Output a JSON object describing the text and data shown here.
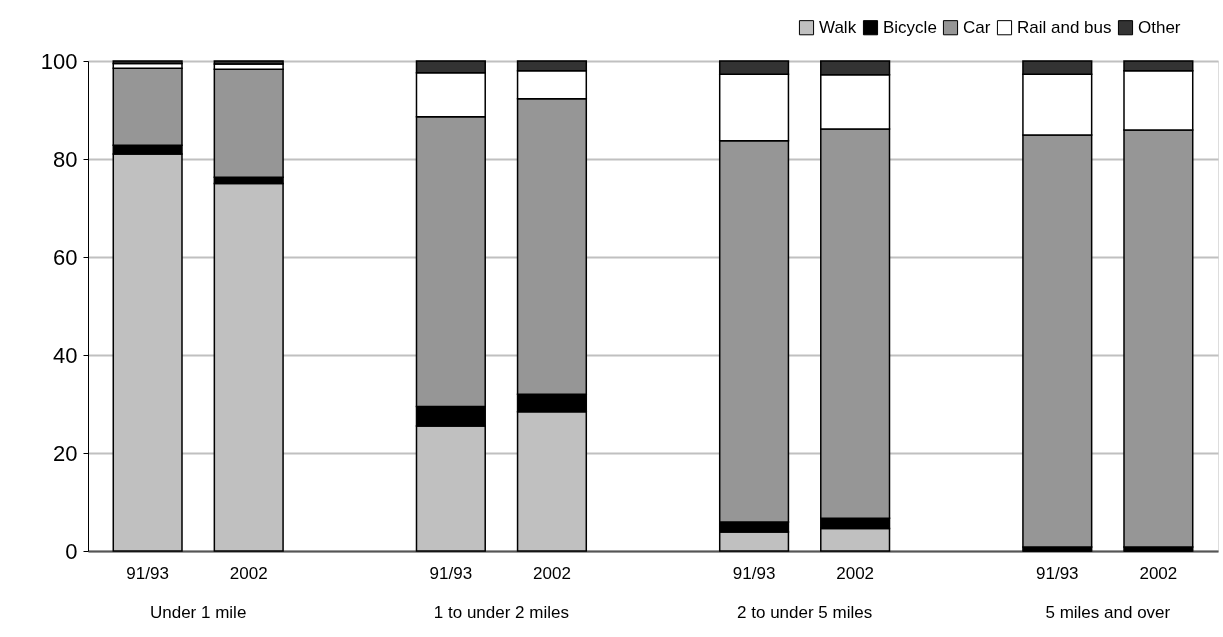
{
  "chart_data": {
    "type": "bar",
    "stacked": true,
    "categories": [
      "91/93",
      "2002",
      null,
      "91/93",
      "2002",
      null,
      "91/93",
      "2002",
      null,
      "91/93",
      "2002"
    ],
    "series": [
      {
        "name": "Walk",
        "color": "#c0c0c0",
        "values": [
          81,
          75,
          null,
          25.5,
          28.4,
          null,
          3.9,
          4.6,
          null,
          0,
          0
        ]
      },
      {
        "name": "Bicycle",
        "color": "#000000",
        "values": [
          1.8,
          1.3,
          null,
          4,
          3.6,
          null,
          2,
          2.1,
          null,
          0.8,
          0.8
        ]
      },
      {
        "name": "Car",
        "color": "#969696",
        "values": [
          15.7,
          22,
          null,
          59.1,
          60.3,
          null,
          77.8,
          79.4,
          null,
          84.1,
          85.1
        ]
      },
      {
        "name": "Rail and bus",
        "color": "#ffffff",
        "values": [
          1,
          1.1,
          null,
          9,
          5.7,
          null,
          13.6,
          11.1,
          null,
          12.4,
          12.1
        ]
      },
      {
        "name": "Other",
        "color": "#333333",
        "values": [
          0.5,
          0.6,
          null,
          2.4,
          2,
          null,
          2.7,
          2.8,
          null,
          2.7,
          2
        ]
      }
    ],
    "annotations": [
      "Under 1 mile",
      "1 to under 2 miles",
      "2 to under 5 miles",
      "5 miles and over"
    ],
    "ylim": [
      0,
      100
    ],
    "yticks": [
      0,
      20,
      40,
      60,
      80,
      100
    ],
    "grid": "y",
    "legend": "top right"
  }
}
